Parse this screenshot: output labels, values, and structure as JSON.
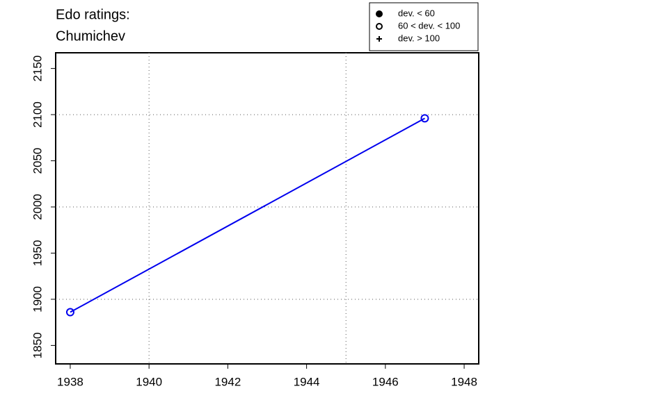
{
  "chart_data": {
    "type": "line",
    "title": [
      "Edo ratings:",
      "Chumichev"
    ],
    "x": [
      1938,
      1947
    ],
    "series": [
      {
        "color": "#0000ee",
        "marker": "open-circle",
        "values": [
          1886,
          2096
        ]
      }
    ],
    "xlim": [
      1937.63,
      1948.37
    ],
    "xticks": [
      1938,
      1940,
      1942,
      1944,
      1946,
      1948
    ],
    "ylim": [
      1830,
      2167
    ],
    "yticks": [
      1850,
      1900,
      1950,
      2000,
      2050,
      2100,
      2150
    ],
    "xgrid": [
      1940,
      1945
    ],
    "ygrid": [
      1900,
      2000,
      2100
    ],
    "legend": {
      "position": "top-right",
      "items": [
        {
          "label": "dev. < 60",
          "marker": "filled-circle"
        },
        {
          "label": "60 < dev. < 100",
          "marker": "open-circle"
        },
        {
          "label": "dev. > 100",
          "marker": "plus"
        }
      ]
    }
  }
}
